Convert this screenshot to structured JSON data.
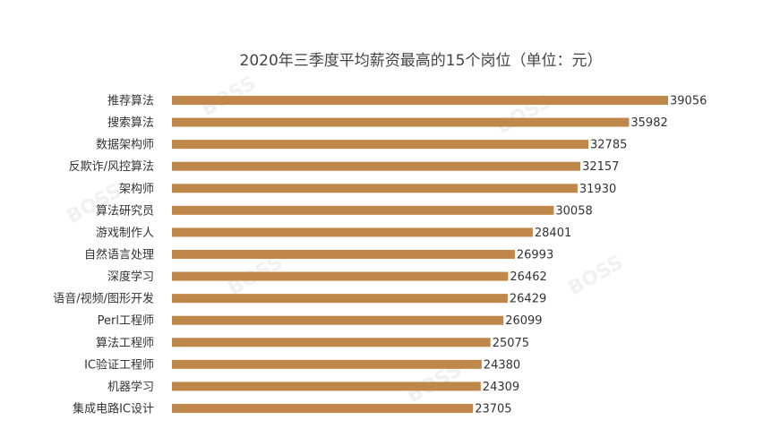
{
  "chart_data": {
    "type": "bar",
    "orientation": "horizontal",
    "title": "2020年三季度平均薪资最高的15个岗位（单位：元）",
    "xlabel": "",
    "ylabel": "",
    "xlim": [
      0,
      39056
    ],
    "grid": false,
    "legend": "none",
    "bar_color": "#c0874a",
    "categories": [
      "推荐算法",
      "搜索算法",
      "数据架构师",
      "反欺诈/风控算法",
      "架构师",
      "算法研究员",
      "游戏制作人",
      "自然语言处理",
      "深度学习",
      "语音/视频/图形开发",
      "Perl工程师",
      "算法工程师",
      "IC验证工程师",
      "机器学习",
      "集成电路IC设计"
    ],
    "values": [
      39056,
      35982,
      32785,
      32157,
      31930,
      30058,
      28401,
      26993,
      26462,
      26429,
      26099,
      25075,
      24380,
      24309,
      23705
    ]
  }
}
